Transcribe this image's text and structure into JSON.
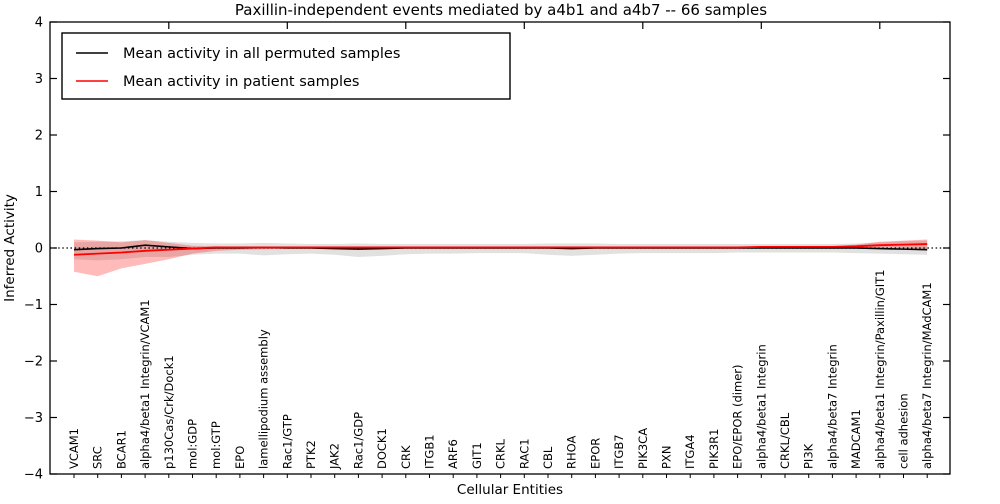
{
  "title": "Paxillin-independent events mediated by a4b1 and a4b7 -- 66 samples",
  "legend": {
    "items": [
      {
        "label": "Mean activity in all permuted samples",
        "color": "#000000"
      },
      {
        "label": "Mean activity in patient samples",
        "color": "#ff0000"
      }
    ]
  },
  "colors": {
    "permuted_line": "#000000",
    "patient_line": "#ff0000",
    "permuted_band": "#aaaaaa",
    "patient_band": "#ff0000",
    "zero_line": "#000000",
    "frame": "#000000"
  },
  "chart_data": {
    "type": "line",
    "title": "Paxillin-independent events mediated by a4b1 and a4b7 -- 66 samples",
    "xlabel": "Cellular Entities",
    "ylabel": "Inferred Activity",
    "ylim": [
      -4,
      4
    ],
    "yticks": [
      4,
      3,
      2,
      1,
      0,
      -1,
      -2,
      -3,
      -4
    ],
    "grid": false,
    "zero_line_style": "dotted",
    "legend_position": "upper left",
    "categories": [
      "VCAM1",
      "SRC",
      "BCAR1",
      "alpha4/beta1 Integrin/VCAM1",
      "p130Cas/Crk/Dock1",
      "mol:GDP",
      "mol:GTP",
      "EPO",
      "lamellipodium assembly",
      "Rac1/GTP",
      "PTK2",
      "JAK2",
      "Rac1/GDP",
      "DOCK1",
      "CRK",
      "ITGB1",
      "ARF6",
      "GIT1",
      "CRKL",
      "RAC1",
      "CBL",
      "RHOA",
      "EPOR",
      "ITGB7",
      "PIK3CA",
      "PXN",
      "ITGA4",
      "PIK3R1",
      "EPO/EPOR (dimer)",
      "alpha4/beta1 Integrin",
      "CRKL/CBL",
      "PI3K",
      "alpha4/beta7 Integrin",
      "MADCAM1",
      "alpha4/beta1 Integrin/Paxillin/GIT1",
      "cell adhesion",
      "alpha4/beta7 Integrin/MAdCAM1"
    ],
    "series": [
      {
        "name": "Mean activity in all permuted samples",
        "color": "#000000",
        "values": [
          -0.03,
          -0.01,
          0.0,
          0.05,
          0.02,
          -0.01,
          0.0,
          0.0,
          0.01,
          0.0,
          0.0,
          -0.01,
          -0.02,
          -0.01,
          0.0,
          0.0,
          0.0,
          0.0,
          0.0,
          0.0,
          0.0,
          -0.01,
          0.0,
          0.0,
          0.0,
          0.0,
          0.0,
          0.0,
          0.0,
          0.0,
          0.0,
          0.0,
          0.0,
          0.0,
          -0.01,
          -0.02,
          -0.03
        ]
      },
      {
        "name": "Mean activity in patient samples",
        "color": "#ff0000",
        "values": [
          -0.12,
          -0.1,
          -0.08,
          -0.05,
          -0.03,
          -0.01,
          0.01,
          0.01,
          0.01,
          0.01,
          0.01,
          0.01,
          0.01,
          0.01,
          0.01,
          0.01,
          0.01,
          0.01,
          0.01,
          0.01,
          0.01,
          0.01,
          0.01,
          0.01,
          0.01,
          0.01,
          0.01,
          0.01,
          0.01,
          0.02,
          0.02,
          0.02,
          0.02,
          0.03,
          0.05,
          0.06,
          0.07
        ]
      }
    ],
    "bands": [
      {
        "name": "permuted-samples-spread",
        "color": "#aaaaaa",
        "opacity": 0.35,
        "hi": [
          0.1,
          0.11,
          0.12,
          0.14,
          0.11,
          0.09,
          0.08,
          0.08,
          0.09,
          0.08,
          0.07,
          0.07,
          0.08,
          0.07,
          0.07,
          0.07,
          0.07,
          0.07,
          0.07,
          0.07,
          0.08,
          0.08,
          0.08,
          0.07,
          0.07,
          0.07,
          0.07,
          0.07,
          0.07,
          0.07,
          0.07,
          0.07,
          0.07,
          0.08,
          0.1,
          0.12,
          0.13
        ],
        "lo": [
          -0.2,
          -0.22,
          -0.2,
          -0.16,
          -0.16,
          -0.12,
          -0.1,
          -0.1,
          -0.13,
          -0.11,
          -0.1,
          -0.12,
          -0.16,
          -0.14,
          -0.11,
          -0.1,
          -0.1,
          -0.09,
          -0.09,
          -0.09,
          -0.12,
          -0.14,
          -0.12,
          -0.1,
          -0.09,
          -0.09,
          -0.09,
          -0.09,
          -0.08,
          -0.08,
          -0.08,
          -0.08,
          -0.08,
          -0.09,
          -0.1,
          -0.11,
          -0.12
        ]
      },
      {
        "name": "patient-samples-spread",
        "color": "#ff0000",
        "opacity": 0.27,
        "hi": [
          0.15,
          0.13,
          0.1,
          0.14,
          0.09,
          0.04,
          0.03,
          0.02,
          0.02,
          0.02,
          0.02,
          0.02,
          0.02,
          0.02,
          0.02,
          0.02,
          0.02,
          0.02,
          0.02,
          0.02,
          0.02,
          0.02,
          0.02,
          0.02,
          0.02,
          0.02,
          0.02,
          0.02,
          0.02,
          0.03,
          0.03,
          0.03,
          0.03,
          0.06,
          0.11,
          0.13,
          0.15
        ],
        "lo": [
          -0.42,
          -0.5,
          -0.36,
          -0.28,
          -0.2,
          -0.1,
          -0.05,
          -0.03,
          -0.02,
          -0.01,
          -0.01,
          -0.01,
          -0.01,
          -0.01,
          -0.01,
          -0.01,
          -0.01,
          -0.01,
          -0.01,
          -0.01,
          -0.01,
          -0.01,
          -0.01,
          -0.01,
          -0.01,
          -0.01,
          -0.01,
          -0.01,
          -0.01,
          0.0,
          0.0,
          0.0,
          0.0,
          0.0,
          0.01,
          0.0,
          -0.02
        ]
      }
    ]
  }
}
